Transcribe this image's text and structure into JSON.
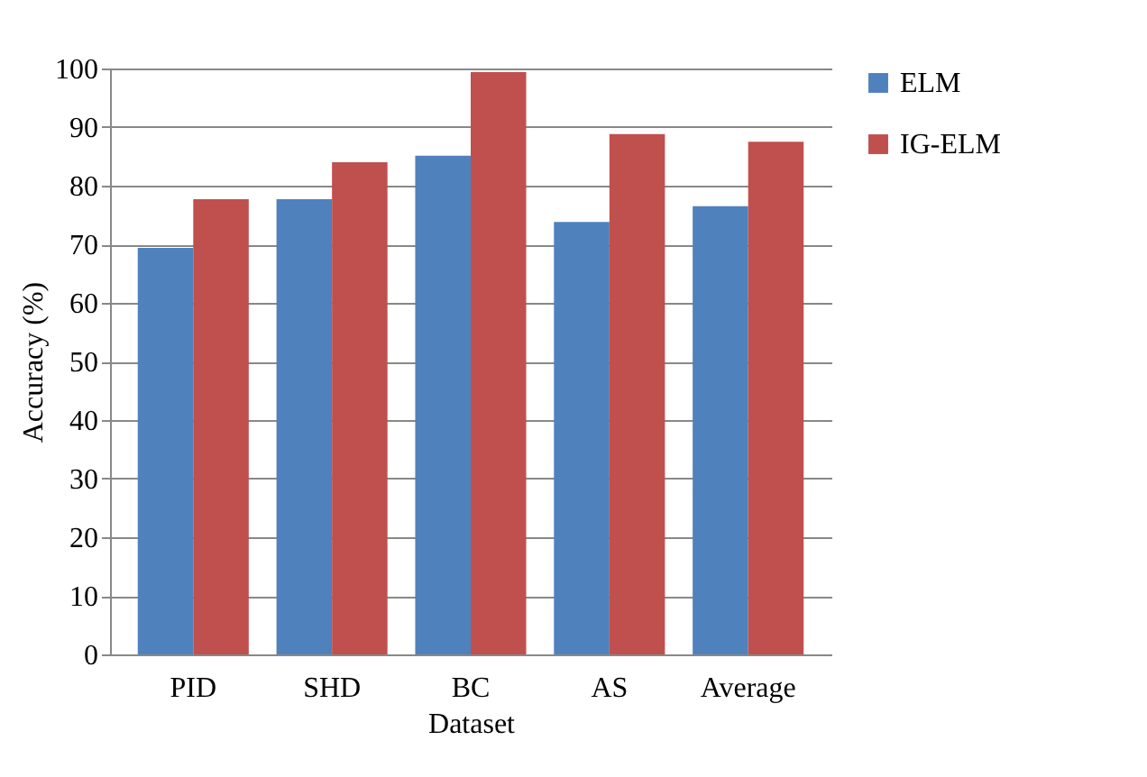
{
  "chart_data": {
    "type": "bar",
    "xlabel": "Dataset",
    "ylabel": "Accuracy (%)",
    "categories": [
      "PID",
      "SHD",
      "BC",
      "AS",
      "Average"
    ],
    "series": [
      {
        "name": "ELM",
        "color": "#4f81bd",
        "values": [
          69.4,
          77.7,
          85.1,
          73.8,
          76.5
        ]
      },
      {
        "name": "IG-ELM",
        "color": "#c0504d",
        "values": [
          77.7,
          84.0,
          99.4,
          88.8,
          87.5
        ]
      }
    ],
    "ylim": [
      0,
      100
    ],
    "yticks": [
      0,
      10,
      20,
      30,
      40,
      50,
      60,
      70,
      80,
      90,
      100
    ],
    "grid": "y",
    "legend": "top right"
  }
}
